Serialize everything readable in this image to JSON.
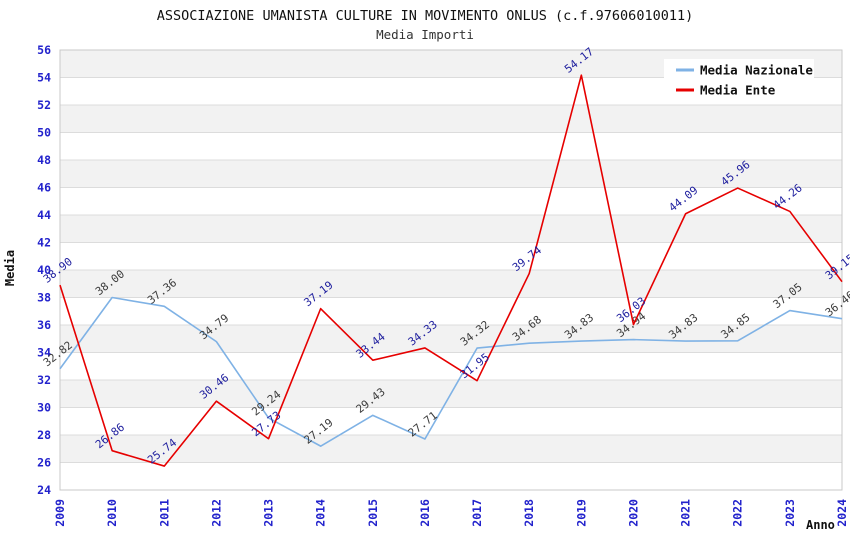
{
  "chart_data": {
    "type": "line",
    "title": "ASSOCIAZIONE UMANISTA CULTURE IN MOVIMENTO ONLUS (c.f.97606010011)",
    "subtitle": "Media Importi",
    "xlabel": "Anno",
    "ylabel": "Media",
    "ylim": [
      24,
      56
    ],
    "ytick_step": 2,
    "grid": "horizontal-bands-alternating",
    "legend_position": "top-right",
    "categories": [
      "2009",
      "2010",
      "2011",
      "2012",
      "2013",
      "2014",
      "2015",
      "2016",
      "2017",
      "2018",
      "2019",
      "2020",
      "2021",
      "2022",
      "2023",
      "2024"
    ],
    "series": [
      {
        "name": "Media Nazionale",
        "color": "#7fb2e5",
        "label_color": "#3c3c3c",
        "values": [
          32.82,
          38.0,
          37.36,
          34.79,
          29.24,
          27.19,
          29.43,
          27.71,
          34.32,
          34.68,
          34.83,
          34.94,
          34.83,
          34.85,
          37.05,
          36.46
        ]
      },
      {
        "name": "Media Ente",
        "color": "#e60000",
        "label_color": "#1e1e9e",
        "values": [
          38.9,
          26.86,
          25.74,
          30.46,
          27.73,
          37.19,
          33.44,
          34.33,
          31.95,
          39.74,
          54.17,
          36.03,
          44.09,
          45.96,
          44.26,
          39.15
        ]
      }
    ],
    "colors": {
      "tick_label": "#2222cc",
      "band_gray": "#f2f2f2",
      "band_white": "#ffffff",
      "gridline": "#dcdcdc",
      "plot_border": "#c9c9c9"
    }
  }
}
